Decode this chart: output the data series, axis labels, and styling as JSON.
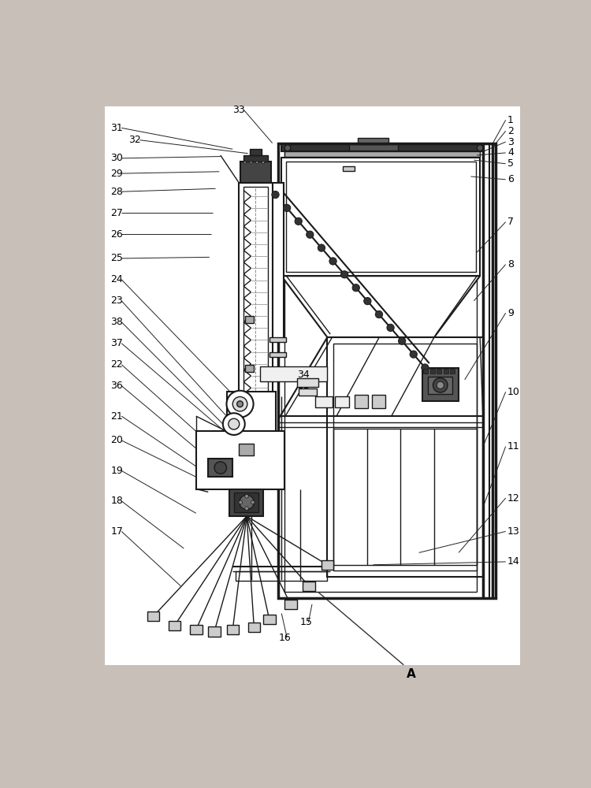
{
  "bg_color": "#c8c0b8",
  "draw_bg": "#ffffff",
  "line_color": "#1a1a1a",
  "gray_line": "#555555",
  "label_font_size": 9,
  "anno_font_size": 8
}
